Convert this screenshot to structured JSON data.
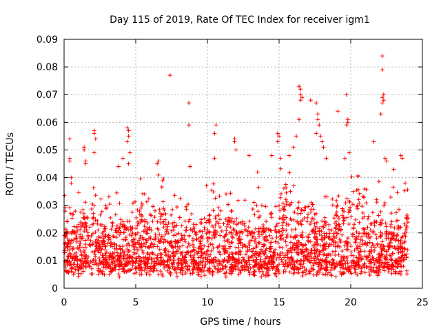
{
  "chart_data": {
    "type": "scatter",
    "title": "Day 115 of 2019, Rate Of TEC Index for receiver igm1",
    "xlabel": "GPS time / hours",
    "ylabel": "ROTI / TECUs",
    "xlim": [
      0,
      25
    ],
    "ylim": [
      0,
      0.09
    ],
    "xticks": [
      0,
      5,
      10,
      15,
      20,
      25
    ],
    "xtick_labels": [
      "0",
      "5",
      "10",
      "15",
      "20",
      "25"
    ],
    "yticks": [
      0,
      0.01,
      0.02,
      0.03,
      0.04,
      0.05,
      0.06,
      0.07,
      0.08,
      0.09
    ],
    "ytick_labels": [
      "0",
      "0.01",
      "0.02",
      "0.03",
      "0.04",
      "0.05",
      "0.06",
      "0.07",
      "0.08",
      "0.09"
    ],
    "grid": true,
    "marker": "plus",
    "color": "#ff0000",
    "series": [
      {
        "name": "ROTI",
        "outliers": [
          [
            0.4,
            0.054
          ],
          [
            0.4,
            0.047
          ],
          [
            0.4,
            0.046
          ],
          [
            0.5,
            0.04
          ],
          [
            0.5,
            0.038
          ],
          [
            1.4,
            0.051
          ],
          [
            1.4,
            0.05
          ],
          [
            1.5,
            0.046
          ],
          [
            1.5,
            0.045
          ],
          [
            2.1,
            0.057
          ],
          [
            2.1,
            0.056
          ],
          [
            2.2,
            0.054
          ],
          [
            2.1,
            0.049
          ],
          [
            3.8,
            0.044
          ],
          [
            4.1,
            0.047
          ],
          [
            4.4,
            0.058
          ],
          [
            4.5,
            0.057
          ],
          [
            4.5,
            0.055
          ],
          [
            4.4,
            0.053
          ],
          [
            4.6,
            0.049
          ],
          [
            4.5,
            0.045
          ],
          [
            6.6,
            0.046
          ],
          [
            6.5,
            0.045
          ],
          [
            7.4,
            0.077
          ],
          [
            8.7,
            0.067
          ],
          [
            8.7,
            0.059
          ],
          [
            8.8,
            0.044
          ],
          [
            10.6,
            0.059
          ],
          [
            10.5,
            0.056
          ],
          [
            10.5,
            0.047
          ],
          [
            11.9,
            0.054
          ],
          [
            11.9,
            0.053
          ],
          [
            12.0,
            0.05
          ],
          [
            12.9,
            0.048
          ],
          [
            13.5,
            0.042
          ],
          [
            14.5,
            0.048
          ],
          [
            14.9,
            0.056
          ],
          [
            15.0,
            0.055
          ],
          [
            14.9,
            0.053
          ],
          [
            15.1,
            0.047
          ],
          [
            15.7,
            0.048
          ],
          [
            16.4,
            0.073
          ],
          [
            16.5,
            0.072
          ],
          [
            16.5,
            0.07
          ],
          [
            16.6,
            0.069
          ],
          [
            16.5,
            0.068
          ],
          [
            16.4,
            0.061
          ],
          [
            16.2,
            0.055
          ],
          [
            16.0,
            0.051
          ],
          [
            17.2,
            0.068
          ],
          [
            17.6,
            0.067
          ],
          [
            17.7,
            0.063
          ],
          [
            17.7,
            0.061
          ],
          [
            17.8,
            0.059
          ],
          [
            17.6,
            0.056
          ],
          [
            17.9,
            0.055
          ],
          [
            18.0,
            0.053
          ],
          [
            18.1,
            0.051
          ],
          [
            18.3,
            0.047
          ],
          [
            19.1,
            0.064
          ],
          [
            19.7,
            0.07
          ],
          [
            19.8,
            0.061
          ],
          [
            19.8,
            0.06
          ],
          [
            19.7,
            0.059
          ],
          [
            19.9,
            0.049
          ],
          [
            19.6,
            0.047
          ],
          [
            21.6,
            0.053
          ],
          [
            22.1,
            0.063
          ],
          [
            22.2,
            0.084
          ],
          [
            22.2,
            0.079
          ],
          [
            22.3,
            0.07
          ],
          [
            22.2,
            0.069
          ],
          [
            22.3,
            0.068
          ],
          [
            22.2,
            0.067
          ],
          [
            22.4,
            0.047
          ],
          [
            22.5,
            0.046
          ],
          [
            23.0,
            0.043
          ],
          [
            23.5,
            0.048
          ],
          [
            23.6,
            0.047
          ],
          [
            23.8,
            0.038
          ]
        ]
      }
    ]
  }
}
